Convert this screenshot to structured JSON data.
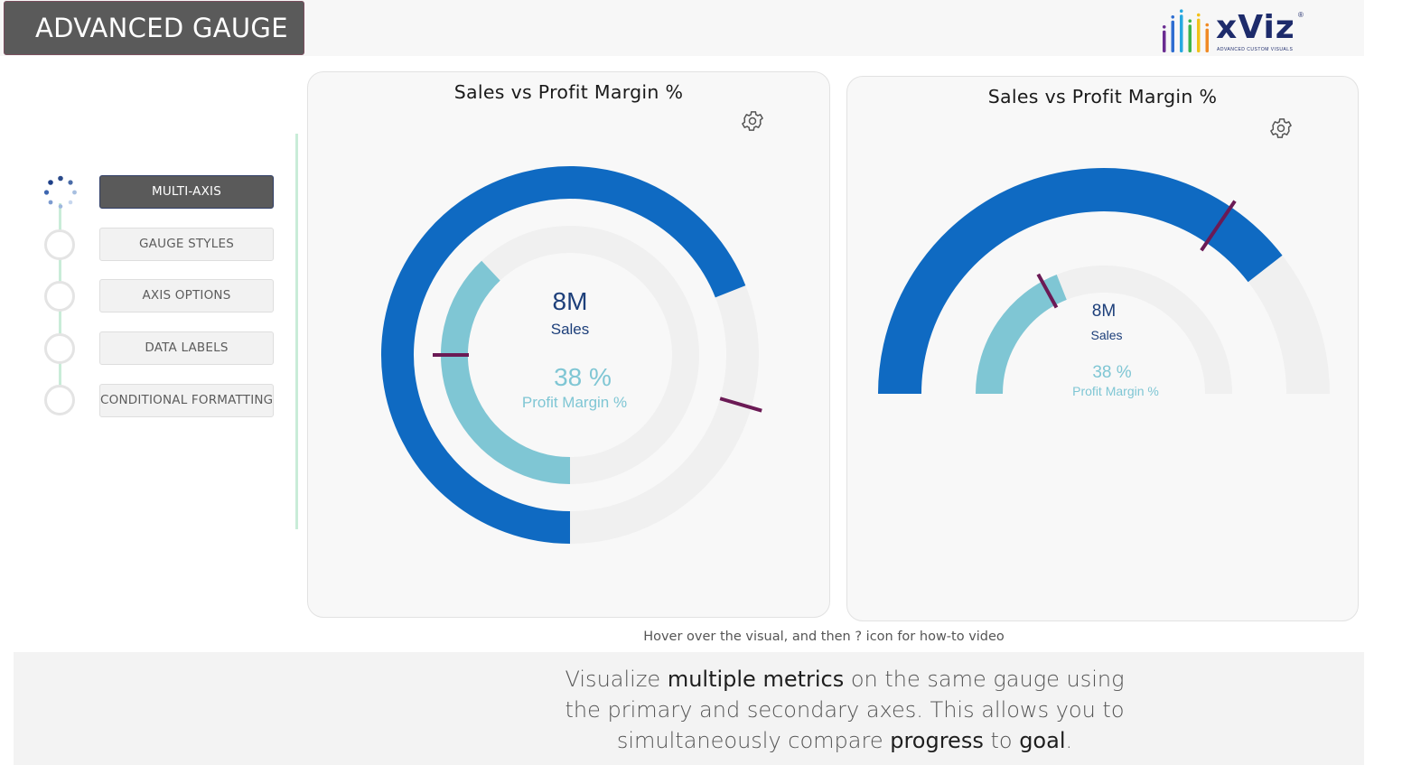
{
  "header": {
    "title": "ADVANCED GAUGE",
    "logo": {
      "text": "xViz",
      "subtitle": "ADVANCED CUSTOM VISUALS",
      "registered": "®"
    }
  },
  "steps": [
    {
      "label": "MULTI-AXIS",
      "active": true
    },
    {
      "label": "GAUGE STYLES",
      "active": false
    },
    {
      "label": "AXIS OPTIONS",
      "active": false
    },
    {
      "label": "DATA LABELS",
      "active": false
    },
    {
      "label": "CONDITIONAL FORMATTING",
      "active": false
    }
  ],
  "gauges": [
    {
      "title": "Sales vs Profit Margin %",
      "style": "full-circle",
      "primary": {
        "value_label": "8M",
        "name": "Sales",
        "fill_fraction": 0.69,
        "target_fraction": 0.795,
        "color": "#0f6ac2"
      },
      "secondary": {
        "value_label": "38 %",
        "name": "Profit Margin %",
        "fill_fraction": 0.38,
        "target_fraction": 0.25,
        "color": "#7fc6d4"
      },
      "track_color": "#f0f0f0",
      "target_color": "#6b1a55"
    },
    {
      "title": "Sales vs Profit Margin %",
      "style": "semi-circle",
      "primary": {
        "value_label": "8M",
        "name": "Sales",
        "fill_fraction": 0.79,
        "target_fraction": 0.69,
        "color": "#0f6ac2"
      },
      "secondary": {
        "value_label": "38 %",
        "name": "Profit Margin %",
        "fill_fraction": 0.38,
        "target_fraction": 0.34,
        "color": "#7fc6d4"
      },
      "track_color": "#f0f0f0",
      "target_color": "#6b1a55"
    }
  ],
  "hint": "Hover over the visual, and then ? icon for how-to video",
  "description": {
    "part1": "Visualize ",
    "bold1": "multiple metrics",
    "part2": " on the same gauge using the primary and secondary axes. This allows you to simultaneously compare ",
    "bold2": "progress",
    "part3": " to ",
    "bold3": "goal",
    "part4": "."
  },
  "colors": {
    "title_bg": "#5a5a5a",
    "step_line": "#c9ecd8",
    "logo_bars": [
      "#6a2c91",
      "#2e6dd1",
      "#26a8e0",
      "#3cb54a",
      "#f2c21a",
      "#f08a24"
    ]
  }
}
